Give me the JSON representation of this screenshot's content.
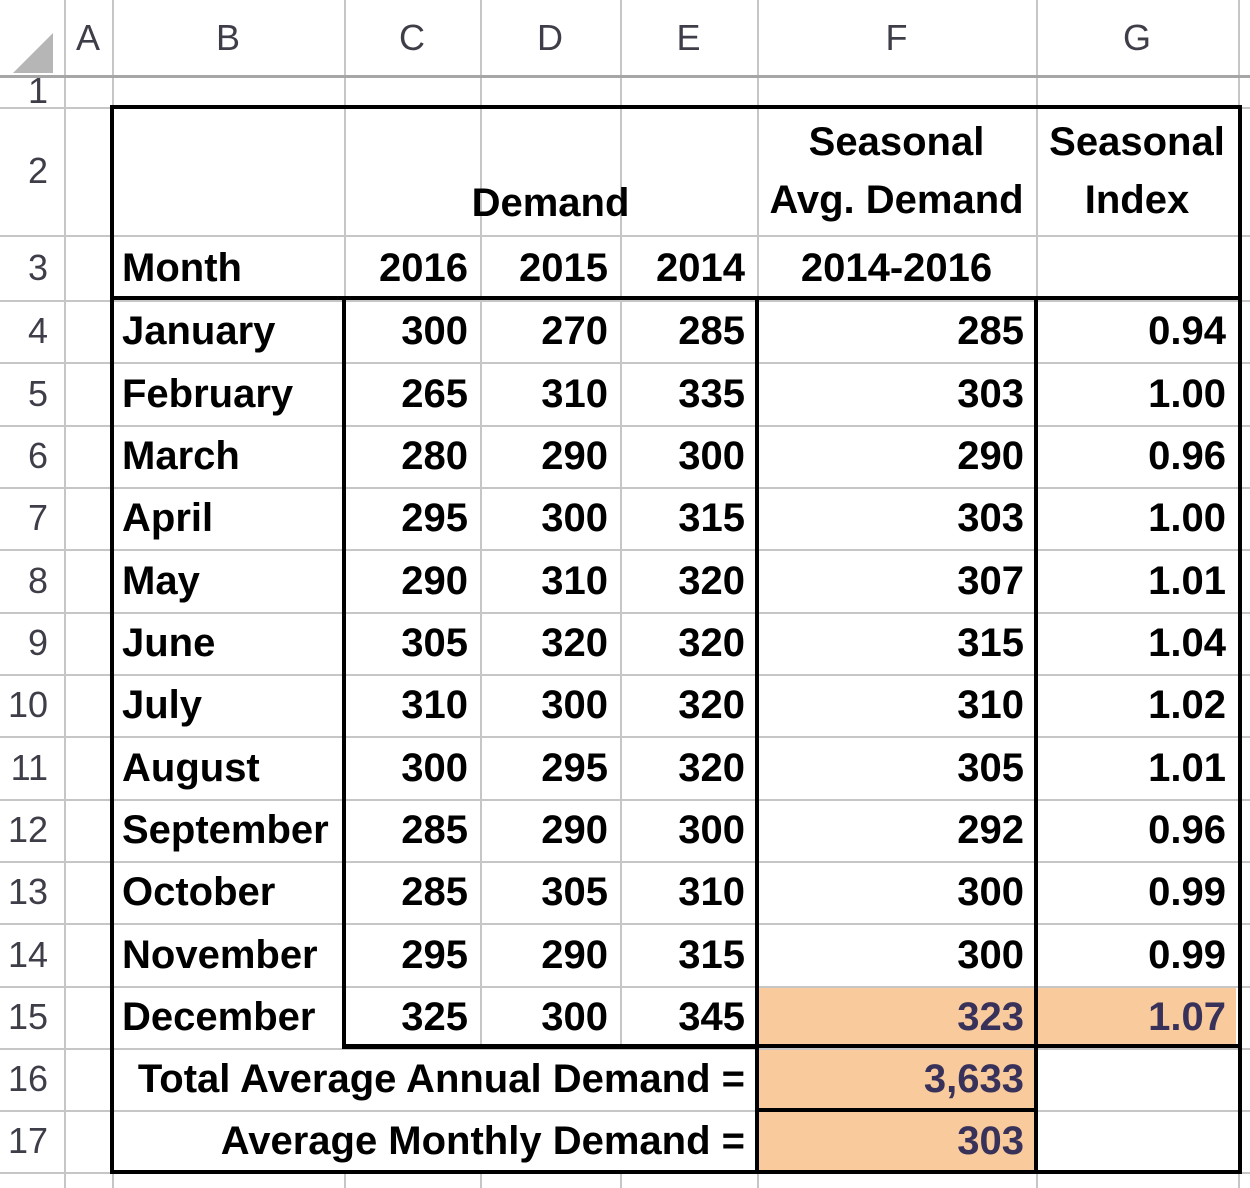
{
  "spreadsheet": {
    "column_headers": [
      "A",
      "B",
      "C",
      "D",
      "E",
      "F",
      "G"
    ],
    "row_headers": [
      "1",
      "2",
      "3",
      "4",
      "5",
      "6",
      "7",
      "8",
      "9",
      "10",
      "11",
      "12",
      "13",
      "14",
      "15",
      "16",
      "17"
    ],
    "header": {
      "demand_label": "Demand",
      "seasonal_avg_line1": "Seasonal",
      "seasonal_avg_line2": "Avg. Demand",
      "seasonal_index_line1": "Seasonal",
      "seasonal_index_line2": "Index",
      "month_label": "Month",
      "year_cols": [
        "2016",
        "2015",
        "2014"
      ],
      "avg_range_label": "2014-2016"
    },
    "rows": [
      {
        "month": "January",
        "y2016": "300",
        "y2015": "270",
        "y2014": "285",
        "avg": "285",
        "index": "0.94"
      },
      {
        "month": "February",
        "y2016": "265",
        "y2015": "310",
        "y2014": "335",
        "avg": "303",
        "index": "1.00"
      },
      {
        "month": "March",
        "y2016": "280",
        "y2015": "290",
        "y2014": "300",
        "avg": "290",
        "index": "0.96"
      },
      {
        "month": "April",
        "y2016": "295",
        "y2015": "300",
        "y2014": "315",
        "avg": "303",
        "index": "1.00"
      },
      {
        "month": "May",
        "y2016": "290",
        "y2015": "310",
        "y2014": "320",
        "avg": "307",
        "index": "1.01"
      },
      {
        "month": "June",
        "y2016": "305",
        "y2015": "320",
        "y2014": "320",
        "avg": "315",
        "index": "1.04"
      },
      {
        "month": "July",
        "y2016": "310",
        "y2015": "300",
        "y2014": "320",
        "avg": "310",
        "index": "1.02"
      },
      {
        "month": "August",
        "y2016": "300",
        "y2015": "295",
        "y2014": "320",
        "avg": "305",
        "index": "1.01"
      },
      {
        "month": "September",
        "y2016": "285",
        "y2015": "290",
        "y2014": "300",
        "avg": "292",
        "index": "0.96"
      },
      {
        "month": "October",
        "y2016": "285",
        "y2015": "305",
        "y2014": "310",
        "avg": "300",
        "index": "0.99"
      },
      {
        "month": "November",
        "y2016": "295",
        "y2015": "290",
        "y2014": "315",
        "avg": "300",
        "index": "0.99"
      },
      {
        "month": "December",
        "y2016": "325",
        "y2015": "300",
        "y2014": "345",
        "avg": "323",
        "index": "1.07"
      }
    ],
    "summary": {
      "total_label": "Total Average Annual Demand =",
      "total_value": "3,633",
      "avg_label": "Average Monthly Demand =",
      "avg_value": "303"
    },
    "colors": {
      "highlight_fill": "#F9CB9C",
      "highlight_text": "#38315A",
      "grid_line": "#C6C6C6",
      "thick_border": "#000000",
      "header_text": "#3E3E49"
    }
  }
}
